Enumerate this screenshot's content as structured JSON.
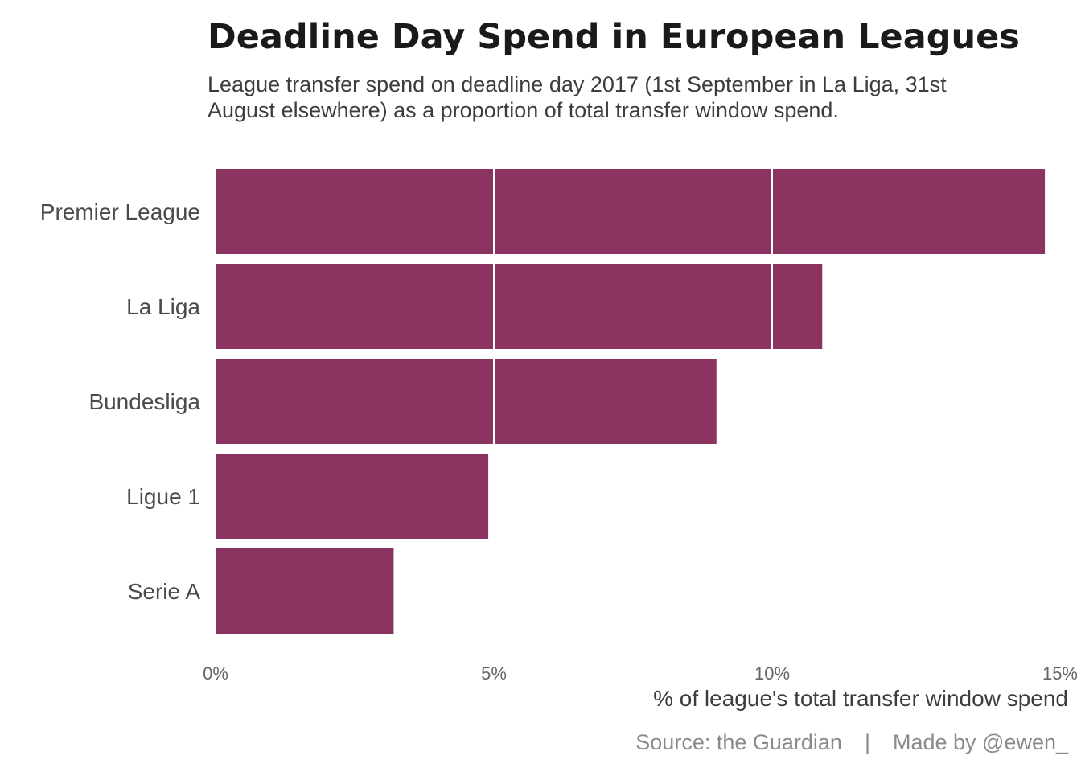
{
  "chart_data": {
    "type": "bar",
    "orientation": "horizontal",
    "title": "Deadline Day Spend in European Leagues",
    "subtitle_lines": [
      "League transfer spend on deadline day 2017 (1st September in La Liga, 31st",
      "August elsewhere) as a proportion of total transfer window spend."
    ],
    "categories": [
      "Premier League",
      "La Liga",
      "Bundesliga",
      "Ligue 1",
      "Serie A"
    ],
    "values": [
      14.9,
      10.9,
      9.0,
      4.9,
      3.2
    ],
    "xlabel": "% of league's total transfer window spend",
    "xlim": [
      0,
      15
    ],
    "xticks": [
      0,
      5,
      10,
      15
    ],
    "xtick_labels": [
      "0%",
      "5%",
      "10%",
      "15%"
    ],
    "grid": "vertical, white, drawn over bars",
    "bar_color": "#8b3461",
    "grid_color": "#ffffff"
  },
  "caption": {
    "source": "Source: the Guardian",
    "separator": "|",
    "author": "Made by @ewen_"
  }
}
